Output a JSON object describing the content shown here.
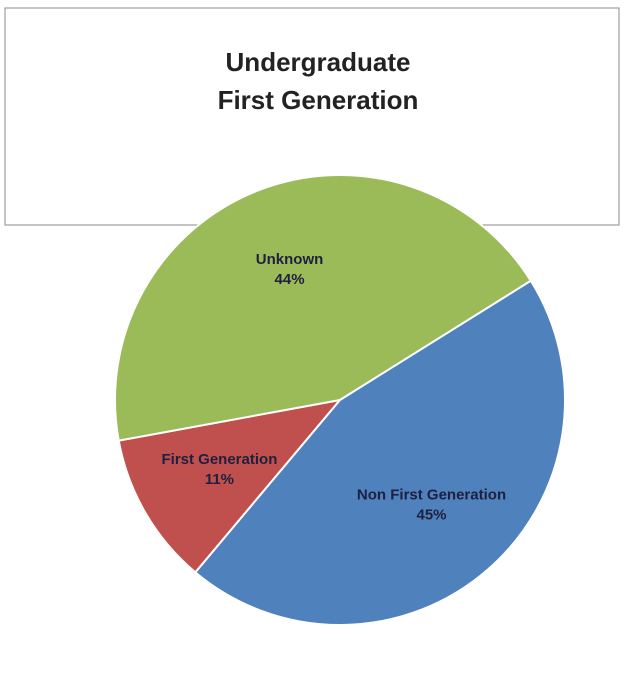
{
  "chart_data": {
    "type": "pie",
    "title": "Undergraduate First Generation",
    "categories": [
      "First Generation",
      "Unknown",
      "Non First Generation"
    ],
    "values": [
      11,
      44,
      45
    ],
    "value_labels": [
      "11%",
      "44%",
      "45%"
    ],
    "colors": [
      "#c0504d",
      "#9bbb59",
      "#4f81bd"
    ]
  }
}
